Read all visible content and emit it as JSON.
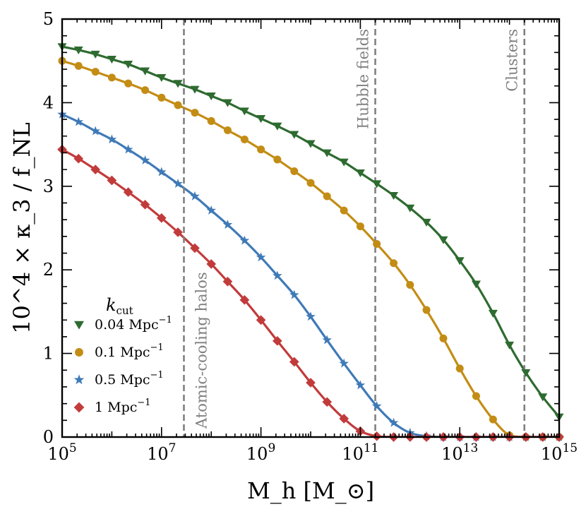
{
  "chart_data": {
    "type": "line",
    "xscale": "log",
    "xlim": [
      100000,
      1000000000000000
    ],
    "ylim": [
      0,
      5
    ],
    "grid": false,
    "xlabel": "M_h [M_⊙]",
    "ylabel": "10^4 × κ_3 / f_NL",
    "x_ticks": [
      {
        "base": "10",
        "exp": "5",
        "value": 100000
      },
      {
        "base": "10",
        "exp": "7",
        "value": 10000000
      },
      {
        "base": "10",
        "exp": "9",
        "value": 1000000000
      },
      {
        "base": "10",
        "exp": "11",
        "value": 100000000000
      },
      {
        "base": "10",
        "exp": "13",
        "value": 10000000000000
      },
      {
        "base": "10",
        "exp": "15",
        "value": 1000000000000000
      }
    ],
    "y_ticks": [
      "0",
      "1",
      "2",
      "3",
      "4",
      "5"
    ],
    "legend": {
      "position": "lower-left",
      "title": "k_cut",
      "title_main": "k",
      "title_sub": "cut"
    },
    "series": [
      {
        "name": "0.04 Mpc⁻¹",
        "label_main": "0.04 Mpc",
        "label_sup": "−1",
        "color": "#2e6b30",
        "marker": "triangle-down",
        "log10_x": [
          5,
          5.33,
          5.67,
          6,
          6.33,
          6.67,
          7,
          7.33,
          7.67,
          8,
          8.33,
          8.67,
          9,
          9.33,
          9.67,
          10,
          10.33,
          10.67,
          11,
          11.33,
          11.67,
          12,
          12.33,
          12.67,
          13,
          13.33,
          13.67,
          14,
          14.33,
          14.67,
          15
        ],
        "y": [
          4.67,
          4.63,
          4.58,
          4.52,
          4.46,
          4.38,
          4.3,
          4.23,
          4.16,
          4.08,
          4.0,
          3.9,
          3.81,
          3.72,
          3.62,
          3.51,
          3.4,
          3.29,
          3.16,
          3.03,
          2.89,
          2.74,
          2.57,
          2.36,
          2.11,
          1.83,
          1.48,
          1.1,
          0.77,
          0.48,
          0.24
        ]
      },
      {
        "name": "0.1 Mpc⁻¹",
        "label_main": "0.1 Mpc",
        "label_sup": "−1",
        "color": "#c38d15",
        "marker": "circle",
        "log10_x": [
          5,
          5.33,
          5.67,
          6,
          6.33,
          6.67,
          7,
          7.33,
          7.67,
          8,
          8.33,
          8.67,
          9,
          9.33,
          9.67,
          10,
          10.33,
          10.67,
          11,
          11.33,
          11.67,
          12,
          12.33,
          12.67,
          13,
          13.33,
          13.67,
          14,
          14.33,
          14.67,
          15
        ],
        "y": [
          4.5,
          4.44,
          4.37,
          4.3,
          4.23,
          4.15,
          4.06,
          3.97,
          3.88,
          3.78,
          3.67,
          3.56,
          3.44,
          3.32,
          3.18,
          3.04,
          2.88,
          2.71,
          2.52,
          2.31,
          2.08,
          1.82,
          1.52,
          1.18,
          0.82,
          0.49,
          0.21,
          0.02,
          0.0,
          0.0,
          0.0
        ]
      },
      {
        "name": "0.5 Mpc⁻¹",
        "label_main": "0.5 Mpc",
        "label_sup": "−1",
        "color": "#3f7ab7",
        "marker": "star",
        "log10_x": [
          5,
          5.33,
          5.67,
          6,
          6.33,
          6.67,
          7,
          7.33,
          7.67,
          8,
          8.33,
          8.67,
          9,
          9.33,
          9.67,
          10,
          10.33,
          10.67,
          11,
          11.33,
          11.67,
          12,
          12.33,
          12.67,
          13,
          13.33,
          13.67,
          14,
          14.33,
          14.67,
          15
        ],
        "y": [
          3.86,
          3.77,
          3.66,
          3.56,
          3.44,
          3.31,
          3.17,
          3.03,
          2.88,
          2.71,
          2.54,
          2.35,
          2.15,
          1.93,
          1.7,
          1.44,
          1.16,
          0.88,
          0.62,
          0.37,
          0.17,
          0.05,
          0.01,
          0.0,
          0.0,
          0.0,
          0.0,
          0.0,
          0.0,
          0.0,
          0.0
        ]
      },
      {
        "name": "1 Mpc⁻¹",
        "label_main": "1 Mpc",
        "label_sup": "−1",
        "color": "#c23b3b",
        "marker": "diamond",
        "log10_x": [
          5,
          5.33,
          5.67,
          6,
          6.33,
          6.67,
          7,
          7.33,
          7.67,
          8,
          8.33,
          8.67,
          9,
          9.33,
          9.67,
          10,
          10.33,
          10.67,
          11,
          11.33,
          11.67,
          12,
          12.33,
          12.67,
          13,
          13.33,
          13.67,
          14,
          14.33,
          14.67,
          15
        ],
        "y": [
          3.44,
          3.33,
          3.2,
          3.07,
          2.93,
          2.78,
          2.62,
          2.45,
          2.26,
          2.07,
          1.86,
          1.64,
          1.4,
          1.15,
          0.9,
          0.65,
          0.42,
          0.22,
          0.07,
          0.01,
          0.0,
          0.0,
          0.0,
          0.0,
          0.0,
          0.0,
          0.0,
          0.0,
          0.0,
          0.0,
          0.0
        ]
      }
    ],
    "annotations": [
      {
        "text": "Atomic-cooling halos",
        "log10_x": 7.45,
        "label_anchor": "bottom"
      },
      {
        "text": "Hubble fields",
        "log10_x": 11.3,
        "label_anchor": "top"
      },
      {
        "text": "Clusters",
        "log10_x": 14.3,
        "label_anchor": "top"
      }
    ]
  }
}
